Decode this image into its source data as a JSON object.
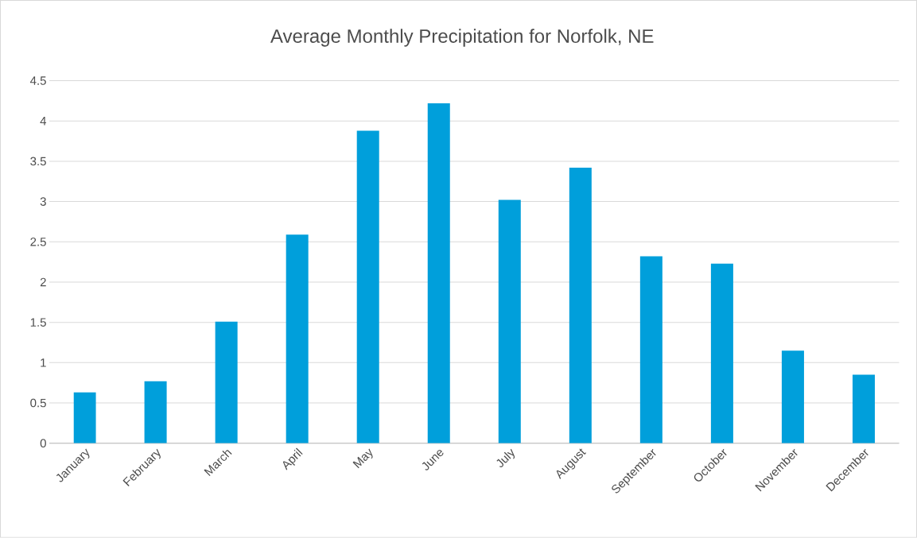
{
  "chart_data": {
    "type": "bar",
    "title": "Average Monthly Precipitation for Norfolk, NE",
    "categories": [
      "January",
      "February",
      "March",
      "April",
      "May",
      "June",
      "July",
      "August",
      "September",
      "October",
      "November",
      "December"
    ],
    "values": [
      0.63,
      0.77,
      1.51,
      2.59,
      3.88,
      4.22,
      3.02,
      3.42,
      2.32,
      2.23,
      1.15,
      0.85
    ],
    "color": "#009fdb",
    "ylim": [
      0,
      4.5
    ],
    "yticks": [
      0,
      0.5,
      1,
      1.5,
      2,
      2.5,
      3,
      3.5,
      4,
      4.5
    ],
    "grid": "y"
  }
}
